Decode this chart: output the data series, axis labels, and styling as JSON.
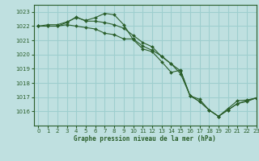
{
  "title": "Graphe pression niveau de la mer (hPa)",
  "bg_color": "#bfe0e0",
  "grid_color": "#9ecece",
  "line_color": "#2a5e2a",
  "xlim": [
    -0.5,
    23
  ],
  "ylim": [
    1015.0,
    1023.5
  ],
  "yticks": [
    1016,
    1017,
    1018,
    1019,
    1020,
    1021,
    1022,
    1023
  ],
  "xticks": [
    0,
    1,
    2,
    3,
    4,
    5,
    6,
    7,
    8,
    9,
    10,
    11,
    12,
    13,
    14,
    15,
    16,
    17,
    18,
    19,
    20,
    21,
    22,
    23
  ],
  "series": [
    [
      1022.0,
      1022.1,
      1022.1,
      1022.3,
      1022.6,
      1022.4,
      1022.6,
      1022.9,
      1022.8,
      1022.1,
      1021.05,
      1020.4,
      1020.2,
      1019.5,
      1018.75,
      1018.9,
      1017.1,
      1016.85,
      1016.1,
      1015.65,
      1016.2,
      1016.75,
      1016.8,
      1016.95
    ],
    [
      1022.0,
      1022.0,
      1022.0,
      1022.1,
      1022.0,
      1021.9,
      1021.8,
      1021.5,
      1021.4,
      1021.1,
      1021.1,
      1020.6,
      1020.3,
      1019.9,
      1019.35,
      1018.85,
      1017.1,
      1016.7,
      1016.1,
      1015.65,
      1016.1,
      1016.55,
      1016.7,
      1016.95
    ],
    [
      1022.0,
      1022.0,
      1022.0,
      1022.25,
      1022.65,
      1022.35,
      1022.35,
      1022.25,
      1022.1,
      1021.85,
      1021.35,
      1020.85,
      1020.55,
      1019.85,
      1019.35,
      1018.65,
      1017.1,
      1016.7,
      1016.1,
      1015.65,
      1016.1,
      1016.55,
      1016.75,
      1016.95
    ]
  ]
}
